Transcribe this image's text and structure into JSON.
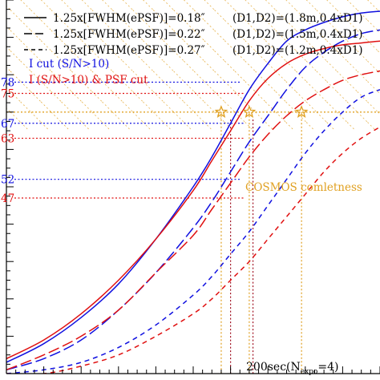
{
  "chart_data": {
    "type": "line",
    "xlim": [
      0,
      100
    ],
    "ylim": [
      0,
      100
    ],
    "grid": false,
    "legend_placement": "top-left",
    "legend": [
      {
        "label": "1.25x[FWHM(ePSF)]=0.18″",
        "config": "(D1,D2)=(1.8m,0.4xD1)",
        "dash": "solid"
      },
      {
        "label": "1.25x[FWHM(ePSF)]=0.22″",
        "config": "(D1,D2)=(1.5m,0.4xD1)",
        "dash": "longdash"
      },
      {
        "label": "1.25x[FWHM(ePSF)]=0.27″",
        "config": "(D1,D2)=(1.2m,0.4xD1)",
        "dash": "shortdash"
      }
    ],
    "cut_legend": [
      {
        "label": "I cut (S/N>10)",
        "color": "#1010e0"
      },
      {
        "label": "I  (S/N>10) & PSF cut",
        "color": "#e01010"
      }
    ],
    "y_tick_labels": [
      {
        "text": "78",
        "value": 78,
        "color": "#1010e0"
      },
      {
        "text": "75",
        "value": 75,
        "color": "#e01010"
      },
      {
        "text": "67",
        "value": 67,
        "color": "#1010e0"
      },
      {
        "text": "63",
        "value": 63,
        "color": "#e01010"
      },
      {
        "text": "52",
        "value": 52,
        "color": "#1010e0"
      },
      {
        "text": "47",
        "value": 47,
        "color": "#e01010"
      }
    ],
    "series": [
      {
        "name": "I cut (S/N>10), 0.18″",
        "color": "#1010e0",
        "dash": "solid",
        "x": [
          0,
          10,
          20,
          30,
          40,
          50,
          55,
          60,
          65,
          70,
          75,
          80,
          85,
          90,
          95,
          100
        ],
        "y": [
          3,
          8,
          15,
          24,
          36,
          50,
          58,
          67,
          76,
          83,
          89,
          92,
          94,
          95.5,
          96.5,
          97
        ]
      },
      {
        "name": "I  (S/N>10) & PSF cut, 0.18″",
        "color": "#e01010",
        "dash": "solid",
        "x": [
          0,
          10,
          20,
          30,
          40,
          50,
          55,
          60,
          65,
          70,
          75,
          80,
          85,
          90,
          95,
          100
        ],
        "y": [
          4,
          9,
          16,
          25,
          36,
          49,
          57,
          65,
          73,
          79,
          83,
          85.5,
          87,
          88,
          88.5,
          89
        ]
      },
      {
        "name": "I cut (S/N>10), 0.22″",
        "color": "#1010e0",
        "dash": "longdash",
        "x": [
          0,
          10,
          20,
          30,
          40,
          50,
          55,
          60,
          65,
          70,
          75,
          80,
          85,
          90,
          95,
          100
        ],
        "y": [
          1,
          4,
          9,
          17,
          27,
          39,
          46,
          54,
          62,
          69,
          76,
          82,
          86,
          89,
          91,
          92
        ]
      },
      {
        "name": "I  (S/N>10) & PSF cut, 0.22″",
        "color": "#e01010",
        "dash": "longdash",
        "x": [
          0,
          10,
          20,
          30,
          40,
          50,
          55,
          60,
          65,
          70,
          75,
          80,
          85,
          90,
          95,
          100
        ],
        "y": [
          1,
          5,
          10,
          17,
          27,
          37,
          44,
          51,
          58,
          64,
          69,
          73,
          76,
          78.5,
          80,
          81
        ]
      },
      {
        "name": "I cut (S/N>10), 0.27″",
        "color": "#1010e0",
        "dash": "shortdash",
        "x": [
          0,
          10,
          20,
          30,
          40,
          50,
          55,
          60,
          65,
          70,
          75,
          80,
          85,
          90,
          95,
          100
        ],
        "y": [
          0,
          1,
          3,
          7,
          13,
          21,
          26,
          32,
          38,
          45,
          52,
          59,
          65,
          70,
          74,
          76
        ]
      },
      {
        "name": "I  (S/N>10) & PSF cut, 0.27″",
        "color": "#e01010",
        "dash": "shortdash",
        "x": [
          0,
          10,
          20,
          30,
          40,
          50,
          55,
          60,
          65,
          70,
          75,
          80,
          85,
          90,
          95,
          100
        ],
        "y": [
          0,
          0,
          2,
          5,
          10,
          16,
          20,
          25,
          30,
          36,
          42,
          48,
          54,
          59,
          63,
          66
        ]
      }
    ],
    "guides": {
      "color": "#e0a020",
      "label": "COSMOS comletness",
      "completeness_y": 70,
      "x": [
        57.5,
        65,
        79
      ],
      "stars_y": [
        70,
        70,
        70
      ]
    },
    "annotation": {
      "prefix": "200sec(N",
      "sub": "expo",
      "suffix": "=4)"
    },
    "colors": {
      "blue": "#1010e0",
      "red": "#e01010",
      "dark_red": "#a01020",
      "orange": "#e0a020"
    }
  }
}
